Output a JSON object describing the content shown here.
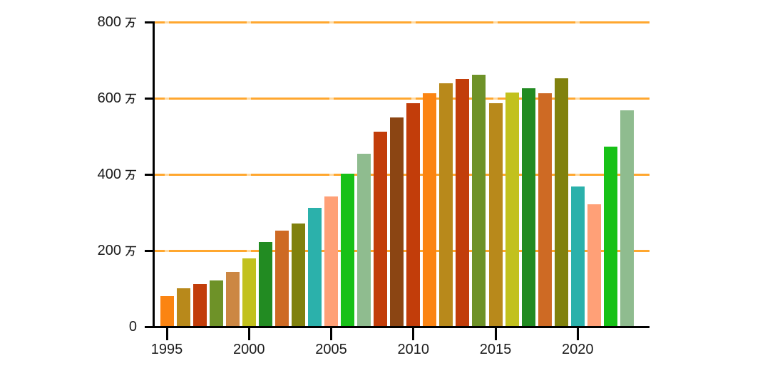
{
  "chart_data": {
    "type": "bar",
    "title": "",
    "xlabel": "",
    "ylabel": "",
    "legend": "none",
    "grid": "horizontal orange gridlines at 200/400/600/800, pale dash marks at year-tick intersections",
    "unit_suffix": "万",
    "x_years": [
      1995,
      1996,
      1997,
      1998,
      1999,
      2000,
      2001,
      2002,
      2003,
      2004,
      2005,
      2006,
      2007,
      2008,
      2009,
      2010,
      2011,
      2012,
      2013,
      2014,
      2015,
      2016,
      2017,
      2018,
      2019,
      2020,
      2021,
      2022,
      2023
    ],
    "values_man": [
      81,
      100,
      112,
      122,
      143,
      180,
      223,
      252,
      270,
      311,
      341,
      402,
      453,
      511,
      549,
      587,
      612,
      638,
      649,
      661,
      587,
      614,
      626,
      613,
      651,
      367,
      322,
      473,
      567
    ],
    "bar_colors": [
      "#FB8412",
      "#B8891B",
      "#C23D0A",
      "#6E9228",
      "#CC8743",
      "#C2C11E",
      "#228B22",
      "#CE6A24",
      "#80810D",
      "#2BB1AB",
      "#FFA077",
      "#17C117",
      "#8FBC8F",
      "#C23D0A",
      "#8B4513",
      "#C23D0A",
      "#FB8412",
      "#B8891B",
      "#C23D0A",
      "#6E9228",
      "#B8891B",
      "#C2C11E",
      "#228B22",
      "#CE6A24",
      "#80810D",
      "#2BB1AB",
      "#FFA077",
      "#17C117",
      "#8FBC8F"
    ],
    "y_axis": {
      "min": 0,
      "max": 800,
      "ticks": [
        {
          "value": 0,
          "num": "0",
          "unit": ""
        },
        {
          "value": 200,
          "num": "200",
          "unit": "万"
        },
        {
          "value": 400,
          "num": "400",
          "unit": "万"
        },
        {
          "value": 600,
          "num": "600",
          "unit": "万"
        },
        {
          "value": 800,
          "num": "800",
          "unit": "万"
        }
      ]
    },
    "x_axis": {
      "ticks": [
        {
          "value": 1995,
          "label": "1995"
        },
        {
          "value": 2000,
          "label": "2000"
        },
        {
          "value": 2005,
          "label": "2005"
        },
        {
          "value": 2010,
          "label": "2010"
        },
        {
          "value": 2015,
          "label": "2015"
        },
        {
          "value": 2020,
          "label": "2020"
        }
      ]
    },
    "colors": {
      "background": "#FFFFFF",
      "gridline": "#FFA72F",
      "gridline_tick_dash": "#FFD9A0",
      "axis": "#000000",
      "text": "#1a1a1a"
    }
  }
}
